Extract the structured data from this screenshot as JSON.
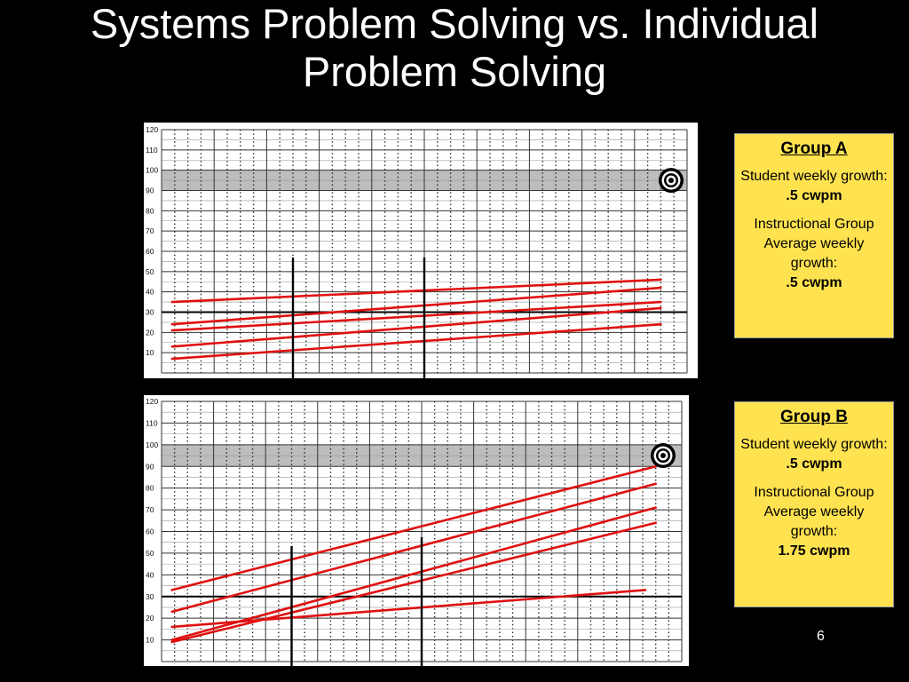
{
  "slide": {
    "title_line1": "Systems Problem Solving vs. Individual",
    "title_line2": "Problem Solving",
    "page_number": "6"
  },
  "colors": {
    "background": "#000000",
    "box": "#ffe24f",
    "trendline": "#e01010",
    "goal_band": "#bdbdbd"
  },
  "group_a": {
    "title": "Group A",
    "student_label": "Student weekly growth:",
    "student_value": ".5 cwpm",
    "group_label": "Instructional Group Average weekly growth:",
    "group_value": ".5 cwpm"
  },
  "group_b": {
    "title": "Group B",
    "student_label": "Student weekly growth:",
    "student_value": ".5 cwpm",
    "group_label": "Instructional Group Average weekly growth:",
    "group_value": "1.75 cwpm"
  },
  "chart_data": [
    {
      "type": "line",
      "name_ref": "group_a",
      "yticks": [
        "120",
        "110",
        "100",
        "90",
        "80",
        "70",
        "60",
        "50",
        "40",
        "30",
        "20",
        "10"
      ],
      "ylim": [
        0,
        120
      ],
      "xlim": [
        0,
        10
      ],
      "goal_band": [
        90,
        100
      ],
      "reference_line_y": 30,
      "phase_lines_x": [
        2.5,
        5.0
      ],
      "goal_marker_icon": "target-icon",
      "series": [
        {
          "x": [
            0.2,
            9.5
          ],
          "y": [
            35,
            46
          ]
        },
        {
          "x": [
            0.2,
            9.5
          ],
          "y": [
            24,
            42
          ]
        },
        {
          "x": [
            0.2,
            9.5
          ],
          "y": [
            21,
            35
          ]
        },
        {
          "x": [
            0.2,
            9.5
          ],
          "y": [
            13,
            32
          ]
        },
        {
          "x": [
            0.2,
            9.5
          ],
          "y": [
            7,
            24
          ]
        }
      ]
    },
    {
      "type": "line",
      "name_ref": "group_b",
      "yticks": [
        "120",
        "110",
        "100",
        "90",
        "80",
        "70",
        "60",
        "50",
        "40",
        "30",
        "20",
        "10"
      ],
      "ylim": [
        0,
        120
      ],
      "xlim": [
        0,
        10
      ],
      "goal_band": [
        90,
        100
      ],
      "reference_line_y": 30,
      "phase_lines_x": [
        2.5,
        5.0
      ],
      "goal_marker_icon": "target-icon",
      "series": [
        {
          "x": [
            0.2,
            9.5
          ],
          "y": [
            33,
            90
          ]
        },
        {
          "x": [
            0.2,
            9.5
          ],
          "y": [
            23,
            82
          ]
        },
        {
          "x": [
            0.2,
            9.5
          ],
          "y": [
            10,
            71
          ]
        },
        {
          "x": [
            0.2,
            9.5
          ],
          "y": [
            9,
            64
          ]
        },
        {
          "x": [
            0.2,
            9.3
          ],
          "y": [
            16,
            33
          ]
        }
      ]
    }
  ]
}
